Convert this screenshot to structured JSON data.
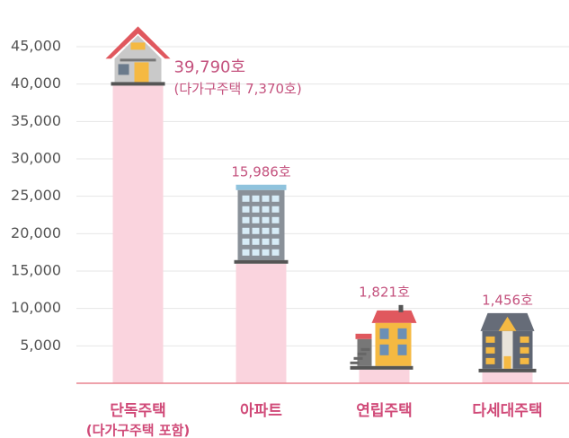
{
  "chart_data": {
    "type": "bar",
    "categories": [
      "단독주택",
      "아파트",
      "연립주택",
      "다세대주택"
    ],
    "category_note": "(다가구주택 포함)",
    "values": [
      39790,
      15986,
      1821,
      1456
    ],
    "value_labels": [
      "39,790호",
      "15,986호",
      "1,821호",
      "1,456호"
    ],
    "annotation": "(다가구주택 7,370호)",
    "color": "#fad4de",
    "ylim": [
      0,
      45000
    ],
    "yticks": [
      {
        "value": 5000,
        "label": "5,000"
      },
      {
        "value": 10000,
        "label": "10,000"
      },
      {
        "value": 15000,
        "label": "15,000"
      },
      {
        "value": 20000,
        "label": "20,000"
      },
      {
        "value": 25000,
        "label": "25,000"
      },
      {
        "value": 30000,
        "label": "30,000"
      },
      {
        "value": 35000,
        "label": "35,000"
      },
      {
        "value": 40000,
        "label": "40,000"
      },
      {
        "value": 45000,
        "label": "45,000"
      }
    ],
    "grid": true
  }
}
